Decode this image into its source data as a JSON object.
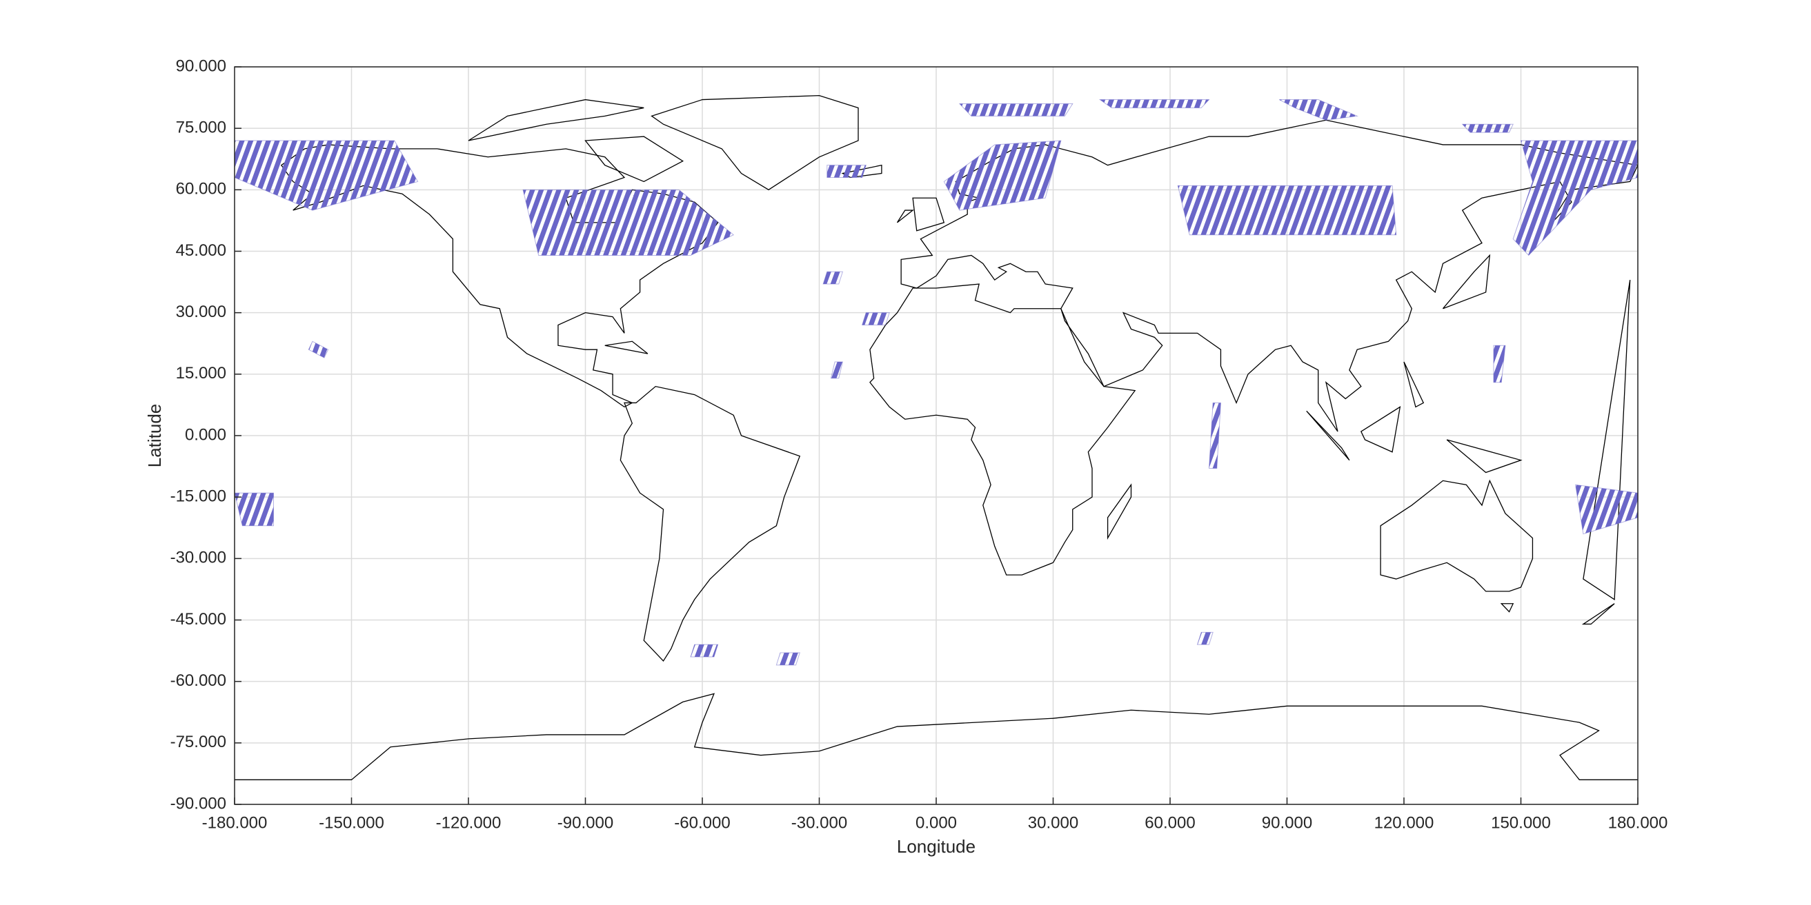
{
  "chart_data": {
    "type": "map",
    "x_label": "Longitude",
    "y_label": "Latitude",
    "xlim": [
      -180,
      180
    ],
    "ylim": [
      -90,
      90
    ],
    "xticks": [
      {
        "value": -180,
        "label": "-180.000"
      },
      {
        "value": -150,
        "label": "-150.000"
      },
      {
        "value": -120,
        "label": "-120.000"
      },
      {
        "value": -90,
        "label": "-90.000"
      },
      {
        "value": -60,
        "label": "-60.000"
      },
      {
        "value": -30,
        "label": "-30.000"
      },
      {
        "value": 0,
        "label": "0.000"
      },
      {
        "value": 30,
        "label": "30.000"
      },
      {
        "value": 60,
        "label": "60.000"
      },
      {
        "value": 90,
        "label": "90.000"
      },
      {
        "value": 120,
        "label": "120.000"
      },
      {
        "value": 150,
        "label": "150.000"
      },
      {
        "value": 180,
        "label": "180.000"
      }
    ],
    "yticks": [
      {
        "value": -90,
        "label": "-90.000"
      },
      {
        "value": -75,
        "label": "-75.000"
      },
      {
        "value": -60,
        "label": "-60.000"
      },
      {
        "value": -45,
        "label": "-45.000"
      },
      {
        "value": -30,
        "label": "-30.000"
      },
      {
        "value": -15,
        "label": "-15.000"
      },
      {
        "value": 0,
        "label": "0.000"
      },
      {
        "value": 15,
        "label": "15.000"
      },
      {
        "value": 30,
        "label": "30.000"
      },
      {
        "value": 45,
        "label": "45.000"
      },
      {
        "value": 60,
        "label": "60.000"
      },
      {
        "value": 75,
        "label": "75.000"
      },
      {
        "value": 90,
        "label": "90.000"
      }
    ],
    "grid": true,
    "color": "#6a66c8",
    "swaths": [
      {
        "lon": [
          -180,
          -139,
          -133,
          -160,
          -180
        ],
        "lat": [
          72,
          72,
          62,
          55,
          63
        ]
      },
      {
        "lon": [
          -106,
          -66,
          -52,
          -63,
          -102
        ],
        "lat": [
          60,
          60,
          49,
          44,
          44
        ]
      },
      {
        "lon": [
          -28,
          -18,
          -19,
          -28
        ],
        "lat": [
          66,
          66,
          63,
          63
        ]
      },
      {
        "lon": [
          2,
          15,
          32,
          28,
          6
        ],
        "lat": [
          62,
          71,
          72,
          58,
          55
        ]
      },
      {
        "lon": [
          6,
          35,
          33,
          9
        ],
        "lat": [
          81,
          81,
          78,
          78
        ]
      },
      {
        "lon": [
          42,
          70,
          68,
          45
        ],
        "lat": [
          82,
          82,
          80,
          80
        ]
      },
      {
        "lon": [
          88,
          98,
          108,
          100,
          92
        ],
        "lat": [
          82,
          82,
          78,
          77,
          80
        ]
      },
      {
        "lon": [
          135,
          148,
          147,
          137
        ],
        "lat": [
          76,
          76,
          74,
          74
        ]
      },
      {
        "lon": [
          62,
          117,
          118,
          65
        ],
        "lat": [
          61,
          61,
          49,
          49
        ]
      },
      {
        "lon": [
          150,
          180,
          180,
          168,
          160,
          152,
          148,
          153
        ],
        "lat": [
          72,
          72,
          63,
          60,
          52,
          44,
          48,
          62
        ]
      },
      {
        "lon": [
          -160,
          -156,
          -157,
          -161
        ],
        "lat": [
          23,
          21,
          19,
          21
        ]
      },
      {
        "lon": [
          -28,
          -24,
          -25,
          -29
        ],
        "lat": [
          40,
          40,
          37,
          37
        ]
      },
      {
        "lon": [
          -18,
          -12,
          -13,
          -19
        ],
        "lat": [
          30,
          30,
          27,
          27
        ]
      },
      {
        "lon": [
          -26,
          -24,
          -25,
          -27
        ],
        "lat": [
          18,
          18,
          14,
          14
        ]
      },
      {
        "lon": [
          -180,
          -170,
          -170,
          -178
        ],
        "lat": [
          -14,
          -14,
          -22,
          -22
        ]
      },
      {
        "lon": [
          -62,
          -56,
          -57,
          -63
        ],
        "lat": [
          -51,
          -51,
          -54,
          -54
        ]
      },
      {
        "lon": [
          -40,
          -35,
          -36,
          -41
        ],
        "lat": [
          -53,
          -53,
          -56,
          -56
        ]
      },
      {
        "lon": [
          68,
          71,
          70,
          67
        ],
        "lat": [
          -48,
          -48,
          -51,
          -51
        ]
      },
      {
        "lon": [
          71,
          73,
          72,
          70
        ],
        "lat": [
          8,
          8,
          -8,
          -8
        ]
      },
      {
        "lon": [
          164,
          180,
          180,
          166
        ],
        "lat": [
          -12,
          -14,
          -20,
          -24
        ]
      },
      {
        "lon": [
          143,
          146,
          145,
          143
        ],
        "lat": [
          22,
          22,
          13,
          13
        ]
      }
    ]
  }
}
